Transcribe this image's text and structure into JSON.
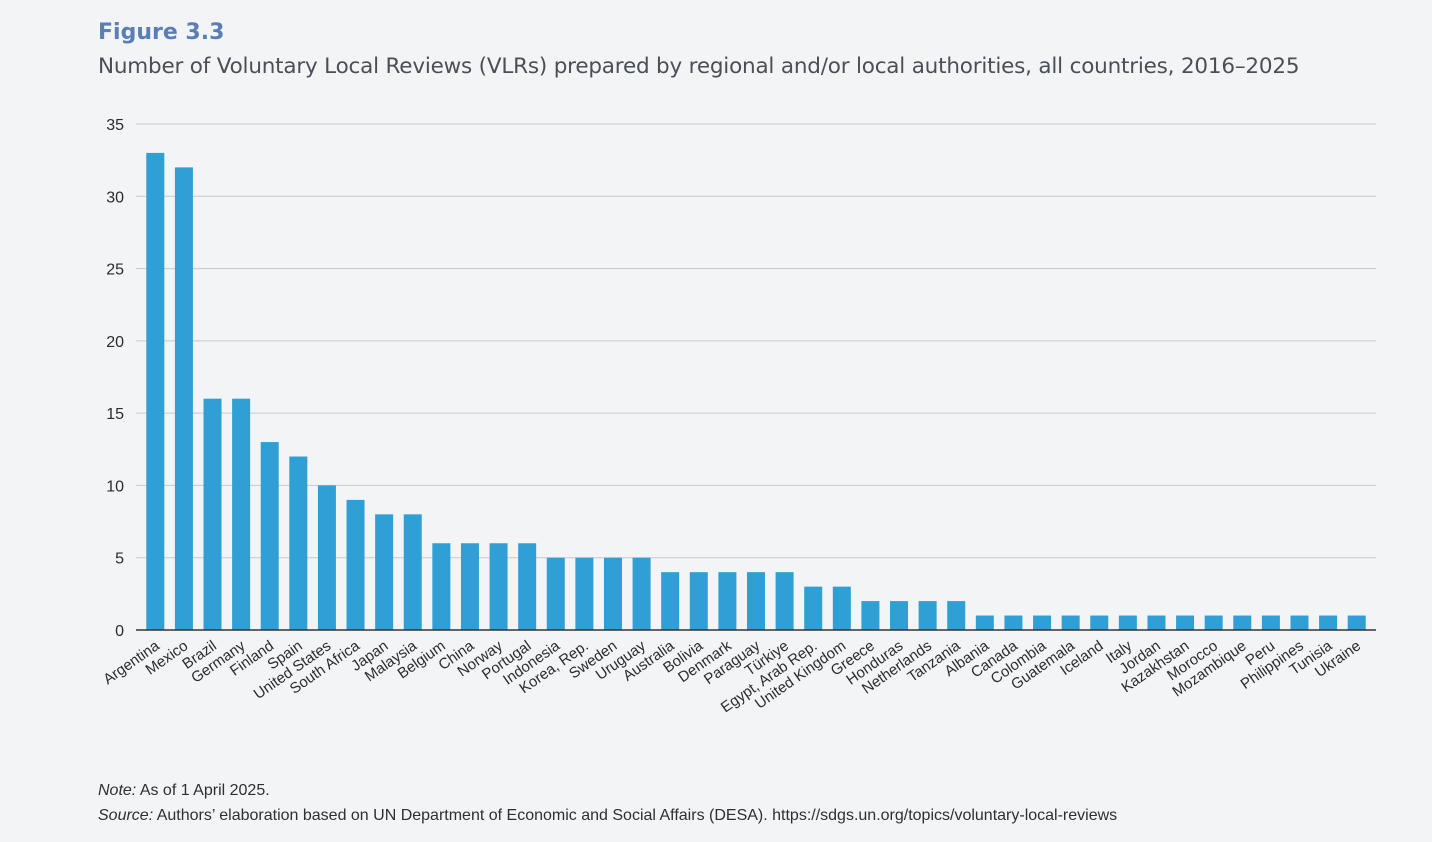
{
  "figure": {
    "label": "Figure 3.3",
    "title": "Number of Voluntary Local Reviews (VLRs) prepared by regional and/or local authorities, all countries, 2016–2025"
  },
  "footnotes": {
    "note_prefix": "Note:",
    "note_text": " As of 1 April 2025.",
    "source_prefix": "Source:",
    "source_text": " Authors’ elaboration based on UN Department of Economic and Social Affairs (DESA). https://sdgs.un.org/topics/voluntary-local-reviews"
  },
  "colors": {
    "bar": "#2f9fd5",
    "grid": "#c8c8cc",
    "axis": "#333333",
    "tick_text": "#2b2b2b"
  },
  "chart_data": {
    "type": "bar",
    "categories": [
      "Argentina",
      "Mexico",
      "Brazil",
      "Germany",
      "Finland",
      "Spain",
      "United States",
      "South Africa",
      "Japan",
      "Malaysia",
      "Belgium",
      "China",
      "Norway",
      "Portugal",
      "Indonesia",
      "Korea, Rep.",
      "Sweden",
      "Uruguay",
      "Australia",
      "Bolivia",
      "Denmark",
      "Paraguay",
      "Türkiye",
      "Egypt, Arab Rep.",
      "United Kingdom",
      "Greece",
      "Honduras",
      "Netherlands",
      "Tanzania",
      "Albania",
      "Canada",
      "Colombia",
      "Guatemala",
      "Iceland",
      "Italy",
      "Jordan",
      "Kazakhstan",
      "Morocco",
      "Mozambique",
      "Peru",
      "Philippines",
      "Tunisia",
      "Ukraine"
    ],
    "values": [
      33,
      32,
      16,
      16,
      13,
      12,
      10,
      9,
      8,
      8,
      6,
      6,
      6,
      6,
      5,
      5,
      5,
      5,
      4,
      4,
      4,
      4,
      4,
      3,
      3,
      2,
      2,
      2,
      2,
      1,
      1,
      1,
      1,
      1,
      1,
      1,
      1,
      1,
      1,
      1,
      1,
      1,
      1
    ],
    "ylim": [
      0,
      35
    ],
    "yticks": [
      0,
      5,
      10,
      15,
      20,
      25,
      30,
      35
    ],
    "grid": true,
    "xlabel": "",
    "ylabel": ""
  }
}
